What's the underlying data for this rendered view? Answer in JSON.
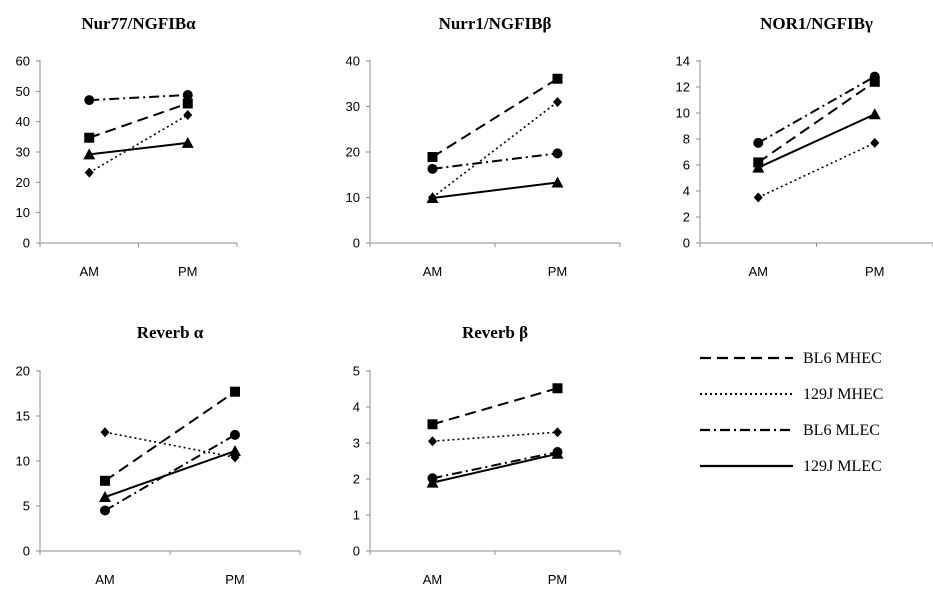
{
  "chart_data": [
    {
      "type": "line",
      "title": "Nur77/NGFIBα",
      "categories": [
        "AM",
        "PM"
      ],
      "ylim": [
        0,
        60
      ],
      "yticks": [
        0,
        10,
        20,
        30,
        40,
        50,
        60
      ],
      "series": [
        {
          "name": "BL6 MHEC",
          "values": [
            34.7,
            46
          ]
        },
        {
          "name": "129J MHEC",
          "values": [
            23.2,
            42.2
          ]
        },
        {
          "name": "BL6 MLEC",
          "values": [
            47.1,
            48.8
          ]
        },
        {
          "name": "129J MLEC",
          "values": [
            29.2,
            33
          ]
        }
      ]
    },
    {
      "type": "line",
      "title": "Nurr1/NGFIBβ",
      "categories": [
        "AM",
        "PM"
      ],
      "ylim": [
        0,
        40
      ],
      "yticks": [
        0,
        10,
        20,
        30,
        40
      ],
      "series": [
        {
          "name": "BL6 MHEC",
          "values": [
            18.9,
            36.1
          ]
        },
        {
          "name": "129J MHEC",
          "values": [
            10,
            31
          ]
        },
        {
          "name": "BL6 MLEC",
          "values": [
            16.3,
            19.7
          ]
        },
        {
          "name": "129J MLEC",
          "values": [
            9.9,
            13.3
          ]
        }
      ]
    },
    {
      "type": "line",
      "title": "NOR1/NGFIBγ",
      "categories": [
        "AM",
        "PM"
      ],
      "ylim": [
        0,
        14
      ],
      "yticks": [
        0,
        2,
        4,
        6,
        8,
        10,
        12,
        14
      ],
      "series": [
        {
          "name": "BL6 MHEC",
          "values": [
            6.2,
            12.4
          ]
        },
        {
          "name": "129J MHEC",
          "values": [
            3.5,
            7.7
          ]
        },
        {
          "name": "BL6 MLEC",
          "values": [
            7.7,
            12.8
          ]
        },
        {
          "name": "129J MLEC",
          "values": [
            5.8,
            9.9
          ]
        }
      ]
    },
    {
      "type": "line",
      "title": "Reverb α",
      "categories": [
        "AM",
        "PM"
      ],
      "ylim": [
        0,
        20
      ],
      "yticks": [
        0,
        5,
        10,
        15,
        20
      ],
      "series": [
        {
          "name": "BL6 MHEC",
          "values": [
            7.8,
            17.7
          ]
        },
        {
          "name": "129J MHEC",
          "values": [
            13.2,
            10.4
          ]
        },
        {
          "name": "BL6 MLEC",
          "values": [
            4.5,
            12.9
          ]
        },
        {
          "name": "129J MLEC",
          "values": [
            6,
            11.1
          ]
        }
      ]
    },
    {
      "type": "line",
      "title": "Reverb β",
      "categories": [
        "AM",
        "PM"
      ],
      "ylim": [
        0,
        5
      ],
      "yticks": [
        0,
        1,
        2,
        3,
        4,
        5
      ],
      "series": [
        {
          "name": "BL6 MHEC",
          "values": [
            3.52,
            4.52
          ]
        },
        {
          "name": "129J MHEC",
          "values": [
            3.05,
            3.3
          ]
        },
        {
          "name": "BL6 MLEC",
          "values": [
            2.02,
            2.75
          ]
        },
        {
          "name": "129J MLEC",
          "values": [
            1.9,
            2.7
          ]
        }
      ]
    }
  ],
  "legend": {
    "placement": "bottom-right",
    "items": [
      {
        "label": "BL6 MHEC",
        "dash": "dashed",
        "marker": "square"
      },
      {
        "label": "129J MHEC",
        "dash": "dotted",
        "marker": "diamond"
      },
      {
        "label": "BL6 MLEC",
        "dash": "dash-dot",
        "marker": "circle"
      },
      {
        "label": "129J MLEC",
        "dash": "solid",
        "marker": "triangle"
      }
    ]
  },
  "colors": {
    "line": "#000000",
    "axis": "#8c8c8c",
    "background": "#ffffff"
  }
}
